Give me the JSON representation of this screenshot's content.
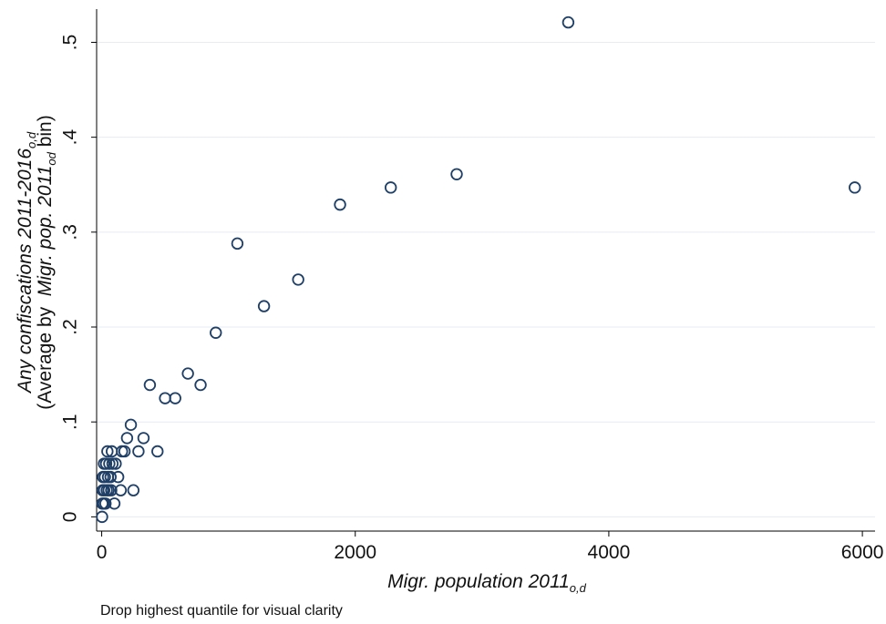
{
  "chart_data": {
    "type": "scatter",
    "xlabel": {
      "main": "Migr. population 2011",
      "sub": "o,d"
    },
    "ylabel": {
      "line1_main": "Any confiscations 2011-2016",
      "line1_sub": "o,d",
      "line2_prefix": "(Average by  ",
      "line2_italic": "Migr. pop. 2011",
      "line2_sub": "od",
      "line2_suffix": " bin)"
    },
    "note": "Drop highest quantile for visual clarity",
    "xlim": [
      -40,
      6100
    ],
    "ylim": [
      -0.015,
      0.535
    ],
    "xticks": [
      0,
      2000,
      4000,
      6000
    ],
    "xtick_labels": [
      "0",
      "2000",
      "4000",
      "6000"
    ],
    "yticks": [
      0,
      0.1,
      0.2,
      0.3,
      0.4,
      0.5
    ],
    "ytick_labels": [
      "0",
      ".1",
      ".2",
      ".3",
      ".4",
      ".5"
    ],
    "grid": true,
    "marker": "hollow-circle",
    "marker_color": "#1f3f66",
    "grid_color": "#e6ecf0",
    "x": [
      3,
      5,
      8,
      10,
      15,
      18,
      20,
      25,
      30,
      35,
      40,
      45,
      50,
      55,
      60,
      70,
      75,
      80,
      85,
      100,
      110,
      130,
      150,
      160,
      180,
      200,
      230,
      250,
      290,
      330,
      380,
      440,
      500,
      580,
      680,
      780,
      900,
      1070,
      1280,
      1550,
      1880,
      2280,
      2800,
      3680,
      5940
    ],
    "y": [
      0.0,
      0.014,
      0.028,
      0.042,
      0.014,
      0.056,
      0.028,
      0.042,
      0.014,
      0.056,
      0.028,
      0.069,
      0.042,
      0.028,
      0.056,
      0.042,
      0.028,
      0.069,
      0.056,
      0.014,
      0.056,
      0.042,
      0.028,
      0.069,
      0.069,
      0.083,
      0.097,
      0.028,
      0.069,
      0.083,
      0.139,
      0.069,
      0.125,
      0.125,
      0.151,
      0.139,
      0.194,
      0.288,
      0.222,
      0.25,
      0.329,
      0.347,
      0.361,
      0.521,
      0.347
    ]
  }
}
